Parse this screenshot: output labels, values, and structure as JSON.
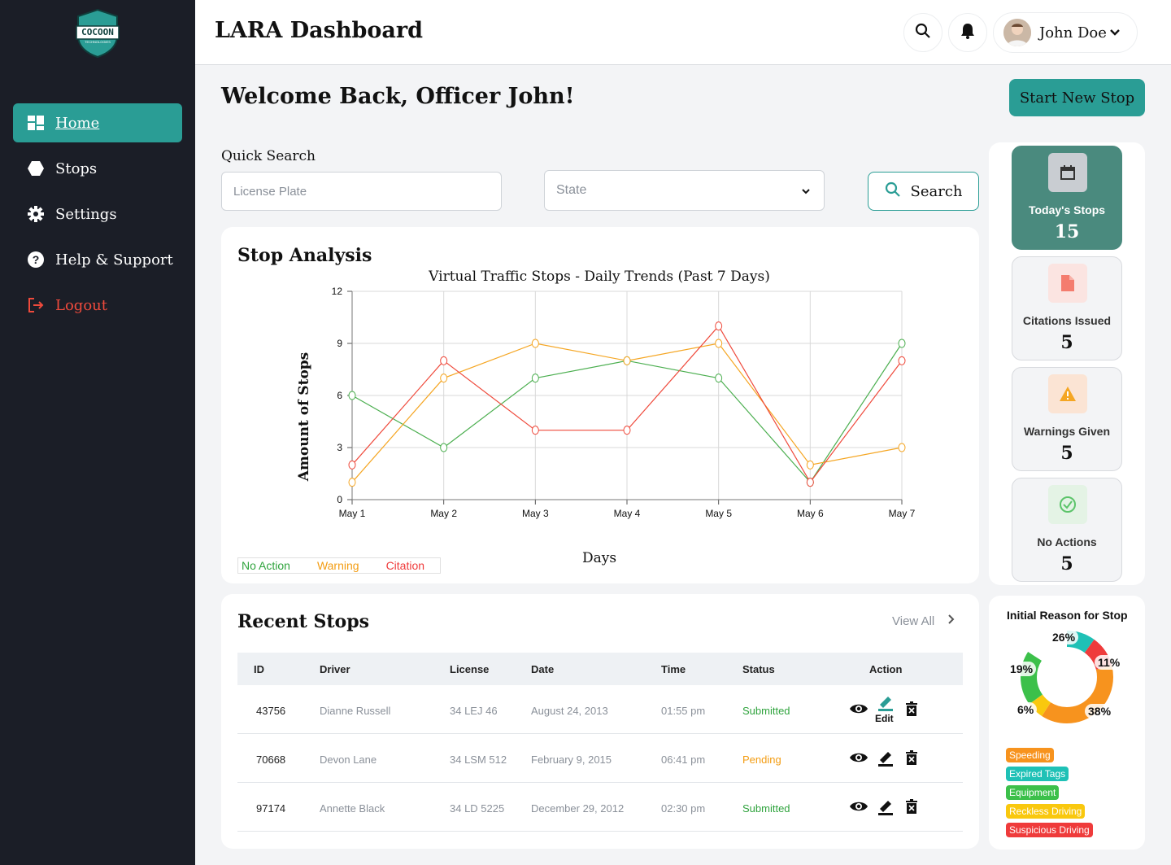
{
  "app": {
    "title": "LARA Dashboard",
    "logo_text": "COCOON",
    "logo_sub": "TECHNOLOGIES"
  },
  "sidebar": {
    "items": [
      {
        "label": "Home",
        "icon": "dashboard-icon"
      },
      {
        "label": "Stops",
        "icon": "hexagon-icon"
      },
      {
        "label": "Settings",
        "icon": "gear-icon"
      },
      {
        "label": "Help & Support",
        "icon": "help-icon"
      },
      {
        "label": "Logout",
        "icon": "logout-icon"
      }
    ]
  },
  "header": {
    "user_name": "John Doe"
  },
  "welcome": {
    "text": "Welcome Back,  Officer  John!",
    "start_button": "Start New Stop"
  },
  "quick_search": {
    "label": "Quick Search",
    "license_placeholder": "License Plate",
    "state_placeholder": "State",
    "search_button": "Search"
  },
  "stop_analysis": {
    "title": "Stop Analysis",
    "legend": {
      "no_action": "No Action",
      "warning": "Warning",
      "citation": "Citation"
    }
  },
  "chart_data": {
    "type": "line",
    "title": "Virtual Traffic Stops - Daily Trends (Past 7 Days)",
    "xlabel": "Days",
    "ylabel": "Amount of Stops",
    "categories": [
      "May 1",
      "May 2",
      "May 3",
      "May 4",
      "May 5",
      "May 6",
      "May 7"
    ],
    "yticks": [
      0,
      3,
      6,
      9,
      12
    ],
    "ylim": [
      0,
      12
    ],
    "grid": true,
    "series": [
      {
        "name": "No Action",
        "color": "#4caf50",
        "values": [
          6,
          3,
          7,
          8,
          7,
          1,
          9
        ]
      },
      {
        "name": "Warning",
        "color": "#f5a623",
        "values": [
          1,
          7,
          9,
          8,
          9,
          2,
          3
        ]
      },
      {
        "name": "Citation",
        "color": "#ef4a3c",
        "values": [
          2,
          8,
          4,
          4,
          10,
          1,
          8
        ]
      }
    ]
  },
  "recent_stops": {
    "title": "Recent Stops",
    "view_all": "View All",
    "columns": [
      "ID",
      "Driver",
      "License",
      "Date",
      "Time",
      "Status",
      "Action"
    ],
    "rows": [
      {
        "id": "43756",
        "driver": "Dianne Russell",
        "license": "34 LEJ 46",
        "date": "August 24, 2013",
        "time": "01:55 pm",
        "status": "Submitted"
      },
      {
        "id": "70668",
        "driver": "Devon Lane",
        "license": "34 LSM 512",
        "date": "February 9, 2015",
        "time": "06:41 pm",
        "status": "Pending"
      },
      {
        "id": "97174",
        "driver": "Annette Black",
        "license": "34 LD 5225",
        "date": "December 29, 2012",
        "time": "02:30 pm",
        "status": "Submitted"
      }
    ],
    "edit_tooltip": "Edit"
  },
  "stats": [
    {
      "label": "Today's Stops",
      "value": "15",
      "icon": "calendar-icon"
    },
    {
      "label": "Citations Issued",
      "value": "5",
      "icon": "document-icon"
    },
    {
      "label": "Warnings Given",
      "value": "5",
      "icon": "warning-icon"
    },
    {
      "label": "No Actions",
      "value": "5",
      "icon": "check-circle-icon"
    }
  ],
  "reasons": {
    "title": "Initial Reason for Stop",
    "segments": [
      {
        "label": "Speeding",
        "value": 38,
        "pct": "38%",
        "color": "#f7931e"
      },
      {
        "label": "Expired Tags",
        "value": 26,
        "pct": "26%",
        "color": "#1fc1b6"
      },
      {
        "label": "Equipment",
        "value": 19,
        "pct": "19%",
        "color": "#3cc04a"
      },
      {
        "label": "Reckless Driving",
        "value": 6,
        "pct": "6%",
        "color": "#f9c80e"
      },
      {
        "label": "Suspicious Driving",
        "value": 11,
        "pct": "11%",
        "color": "#ef3b3b"
      }
    ]
  }
}
